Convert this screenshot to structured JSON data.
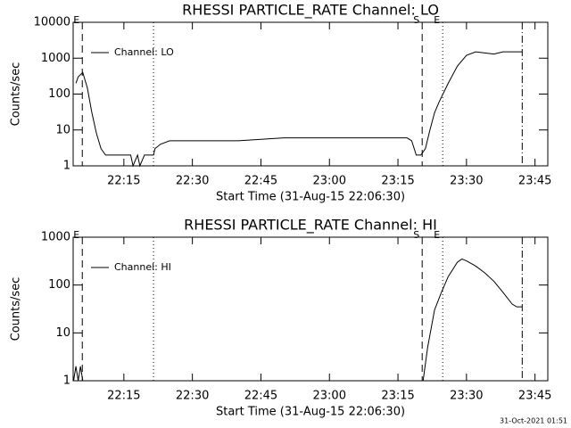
{
  "chart_data": [
    {
      "type": "line",
      "title": "RHESSI PARTICLE_RATE Channel: LO",
      "xlabel": "Start Time (31-Aug-15 22:06:30)",
      "ylabel": "Counts/sec",
      "log_y": true,
      "legend": "upper left",
      "xlim": [
        3.9,
        107.8
      ],
      "xticks": [
        {
          "value": 15,
          "label": "22:15"
        },
        {
          "value": 30,
          "label": "22:30"
        },
        {
          "value": 45,
          "label": "22:45"
        },
        {
          "value": 60,
          "label": "23:00"
        },
        {
          "value": 75,
          "label": "23:15"
        },
        {
          "value": 90,
          "label": "23:30"
        },
        {
          "value": 105,
          "label": "23:45"
        }
      ],
      "ylim": [
        1,
        10000
      ],
      "yticks": [
        1,
        10,
        100,
        1000,
        10000
      ],
      "series": [
        {
          "name": "Channel: LO",
          "color": "#000000",
          "x": [
            4.5,
            5,
            6,
            7,
            8,
            9,
            10,
            11,
            15,
            16.5,
            17,
            18,
            18.5,
            19.5,
            21.5,
            21.8,
            23,
            25,
            30,
            40,
            50,
            60,
            70,
            77,
            78,
            79,
            80,
            81,
            82,
            83,
            84,
            86,
            88,
            90,
            92,
            94,
            96,
            98,
            100,
            102.2
          ],
          "values": [
            200,
            300,
            400,
            150,
            30,
            8,
            3,
            2,
            2,
            2,
            1,
            2,
            1,
            2,
            2,
            3,
            4,
            5,
            5,
            5,
            6,
            6,
            6,
            6,
            5,
            2,
            2,
            3,
            10,
            30,
            60,
            200,
            600,
            1200,
            1500,
            1400,
            1300,
            1500,
            1500,
            1500
          ]
        }
      ],
      "vlines": [
        {
          "x": 5.9,
          "style": "dashed",
          "label": "E"
        },
        {
          "x": 21.5,
          "style": "dotted"
        },
        {
          "x": 80.3,
          "style": "dashed",
          "label": "S"
        },
        {
          "x": 84.8,
          "style": "dotted",
          "label": "E"
        },
        {
          "x": 102.2,
          "style": "dashdot"
        }
      ]
    },
    {
      "type": "line",
      "title": "RHESSI PARTICLE_RATE Channel: HI",
      "xlabel": "Start Time (31-Aug-15 22:06:30)",
      "ylabel": "Counts/sec",
      "log_y": true,
      "legend": "upper left",
      "xlim": [
        3.9,
        107.8
      ],
      "xticks": [
        {
          "value": 15,
          "label": "22:15"
        },
        {
          "value": 30,
          "label": "22:30"
        },
        {
          "value": 45,
          "label": "22:45"
        },
        {
          "value": 60,
          "label": "23:00"
        },
        {
          "value": 75,
          "label": "23:15"
        },
        {
          "value": 90,
          "label": "23:30"
        },
        {
          "value": 105,
          "label": "23:45"
        }
      ],
      "ylim": [
        1,
        1000
      ],
      "yticks": [
        1,
        10,
        100,
        1000
      ],
      "series": [
        {
          "name": "Channel: HI",
          "color": "#000000",
          "x": [
            4,
            4.5,
            5,
            5.5,
            6,
            40,
            80.5,
            81.5,
            83,
            84.5,
            86,
            88,
            89,
            90,
            92,
            94,
            96,
            98,
            100,
            101,
            102.2
          ],
          "values": [
            1,
            2,
            1,
            2,
            1,
            null,
            1,
            5,
            30,
            70,
            150,
            300,
            350,
            320,
            250,
            180,
            120,
            70,
            40,
            35,
            35
          ]
        }
      ],
      "vlines": [
        {
          "x": 5.9,
          "style": "dashed",
          "label": "E"
        },
        {
          "x": 21.5,
          "style": "dotted"
        },
        {
          "x": 80.3,
          "style": "dashed",
          "label": "S"
        },
        {
          "x": 84.8,
          "style": "dotted",
          "label": "E"
        },
        {
          "x": 102.2,
          "style": "dashdot"
        }
      ]
    }
  ],
  "footer": "31-Oct-2021 01:51"
}
